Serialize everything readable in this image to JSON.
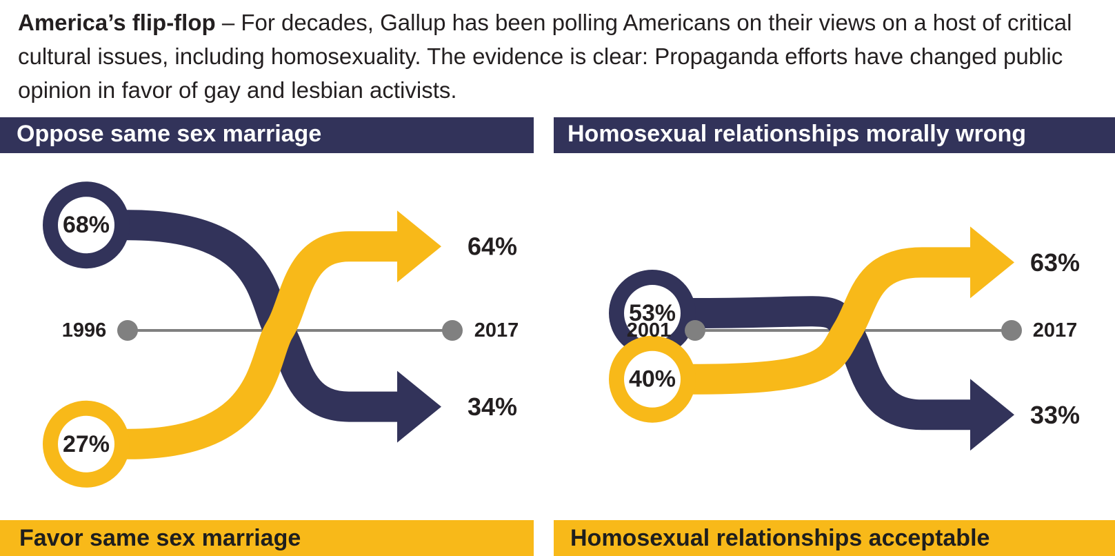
{
  "intro": {
    "lead": "America’s flip-flop",
    "body": " – For decades, Gallup has been polling Americans on their views on a host of critical cultural issues, including homosexuality. The evidence is clear: Propaganda efforts have changed public opinion in favor of gay and lesbian activists."
  },
  "colors": {
    "oppose": "#32335a",
    "favor": "#f8b919",
    "timeline": "#808080"
  },
  "chart_data": [
    {
      "type": "line",
      "top_label": "Oppose same sex marriage",
      "bottom_label": "Favor same sex marriage",
      "x": [
        "1996",
        "2017"
      ],
      "series": [
        {
          "name": "Oppose same sex marriage",
          "values": [
            68,
            34
          ]
        },
        {
          "name": "Favor same sex marriage",
          "values": [
            27,
            64
          ]
        }
      ],
      "value_labels": {
        "oppose_start": "68%",
        "oppose_end": "34%",
        "favor_start": "27%",
        "favor_end": "64%"
      }
    },
    {
      "type": "line",
      "top_label": "Homosexual relationships morally wrong",
      "bottom_label": "Homosexual relationships acceptable",
      "x": [
        "2001",
        "2017"
      ],
      "series": [
        {
          "name": "Homosexual relationships morally wrong",
          "values": [
            53,
            33
          ]
        },
        {
          "name": "Homosexual relationships acceptable",
          "values": [
            40,
            63
          ]
        }
      ],
      "value_labels": {
        "oppose_start": "53%",
        "oppose_end": "33%",
        "favor_start": "40%",
        "favor_end": "63%"
      }
    }
  ]
}
